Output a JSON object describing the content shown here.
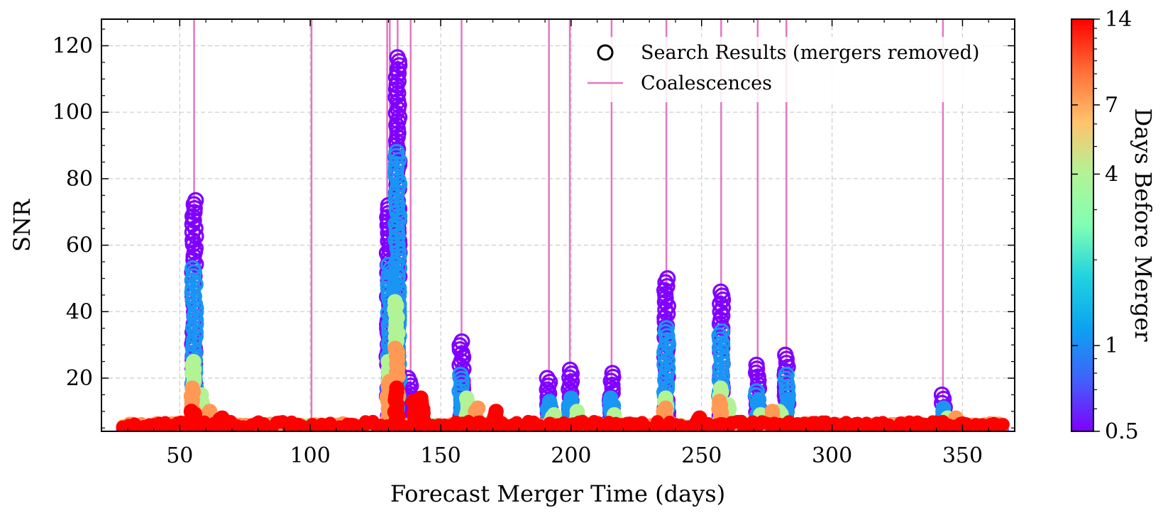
{
  "chart_data": {
    "type": "scatter",
    "xlabel": "Forecast Merger Time (days)",
    "ylabel": "SNR",
    "xlim": [
      20,
      370
    ],
    "ylim": [
      4,
      128
    ],
    "xticks": [
      50,
      100,
      150,
      200,
      250,
      300,
      350
    ],
    "xtick_labels": [
      "50",
      "100",
      "150",
      "200",
      "250",
      "300",
      "350"
    ],
    "yticks": [
      20,
      40,
      60,
      80,
      100,
      120
    ],
    "ytick_labels": [
      "20",
      "40",
      "60",
      "80",
      "100",
      "120"
    ],
    "grid": true,
    "legend": {
      "placement": "top-right",
      "entries": [
        {
          "label": "Search Results (mergers removed)",
          "marker": "open-circle",
          "color": "#000000"
        },
        {
          "label": "Coalescences",
          "marker": "line",
          "color": "#e377c2"
        }
      ]
    },
    "coalescences": {
      "color": "#e377c2",
      "x": [
        55.5,
        100.5,
        129.5,
        130.5,
        133.5,
        138.5,
        158,
        191.5,
        199.5,
        215.5,
        236.5,
        257.5,
        271.5,
        282.5,
        342.5
      ]
    },
    "colorbar": {
      "label": "Days Before Merger",
      "scale": "log",
      "range": [
        0.5,
        14
      ],
      "ticks": [
        0.5,
        1,
        4,
        7,
        14
      ],
      "tick_labels": [
        "0.5",
        "1",
        "4",
        "7",
        "14"
      ],
      "colormap": "rainbow"
    },
    "series": [
      {
        "days_before": 0.5,
        "color": "#8000ff",
        "style": "open",
        "peaks": [
          {
            "x": 55.5,
            "ymax": 73.5
          },
          {
            "x": 130,
            "ymax": 72
          },
          {
            "x": 133.5,
            "ymax": 116.5
          },
          {
            "x": 138,
            "ymax": 20
          },
          {
            "x": 158,
            "ymax": 31
          },
          {
            "x": 191.5,
            "ymax": 20
          },
          {
            "x": 199.5,
            "ymax": 22.5
          },
          {
            "x": 215.5,
            "ymax": 21.5
          },
          {
            "x": 236.5,
            "ymax": 50
          },
          {
            "x": 257.5,
            "ymax": 46
          },
          {
            "x": 271.5,
            "ymax": 24
          },
          {
            "x": 282.5,
            "ymax": 27
          },
          {
            "x": 342.5,
            "ymax": 15
          }
        ]
      },
      {
        "days_before": 1,
        "color": "#1996f3",
        "style": "mixed",
        "peaks": [
          {
            "x": 55.5,
            "ymax": 53
          },
          {
            "x": 130.5,
            "ymax": 54
          },
          {
            "x": 133.5,
            "ymax": 88
          },
          {
            "x": 158,
            "ymax": 21
          },
          {
            "x": 191.5,
            "ymax": 13
          },
          {
            "x": 199.5,
            "ymax": 14
          },
          {
            "x": 215.5,
            "ymax": 14
          },
          {
            "x": 236.5,
            "ymax": 35
          },
          {
            "x": 257.5,
            "ymax": 34
          },
          {
            "x": 271.5,
            "ymax": 16
          },
          {
            "x": 282.5,
            "ymax": 21
          },
          {
            "x": 342.5,
            "ymax": 11
          }
        ]
      },
      {
        "days_before": 4,
        "color": "#b2f396",
        "style": "filled",
        "peaks": [
          {
            "x": 55,
            "ymax": 25
          },
          {
            "x": 58,
            "ymax": 15
          },
          {
            "x": 130.5,
            "ymax": 25
          },
          {
            "x": 133,
            "ymax": 43
          },
          {
            "x": 160,
            "ymax": 14
          },
          {
            "x": 193,
            "ymax": 9
          },
          {
            "x": 202,
            "ymax": 10
          },
          {
            "x": 217,
            "ymax": 9
          },
          {
            "x": 236,
            "ymax": 14
          },
          {
            "x": 257,
            "ymax": 17
          },
          {
            "x": 260,
            "ymax": 12
          },
          {
            "x": 273,
            "ymax": 9
          },
          {
            "x": 280,
            "ymax": 10
          },
          {
            "x": 344,
            "ymax": 8
          }
        ]
      },
      {
        "days_before": 7,
        "color": "#ff9955",
        "style": "filled",
        "peaks": [
          {
            "x": 55,
            "ymax": 17
          },
          {
            "x": 61,
            "ymax": 10
          },
          {
            "x": 130,
            "ymax": 19
          },
          {
            "x": 133,
            "ymax": 29
          },
          {
            "x": 164,
            "ymax": 11
          },
          {
            "x": 236,
            "ymax": 11
          },
          {
            "x": 257,
            "ymax": 13
          },
          {
            "x": 277,
            "ymax": 10
          },
          {
            "x": 348,
            "ymax": 8
          }
        ]
      },
      {
        "days_before": 14,
        "color": "#ff0000",
        "style": "filled",
        "peaks": [
          {
            "x": 55,
            "ymax": 10
          },
          {
            "x": 66,
            "ymax": 8
          },
          {
            "x": 133,
            "ymax": 17
          },
          {
            "x": 140,
            "ymax": 13
          },
          {
            "x": 143,
            "ymax": 14
          },
          {
            "x": 171,
            "ymax": 10
          },
          {
            "x": 249,
            "ymax": 8
          }
        ]
      }
    ]
  }
}
